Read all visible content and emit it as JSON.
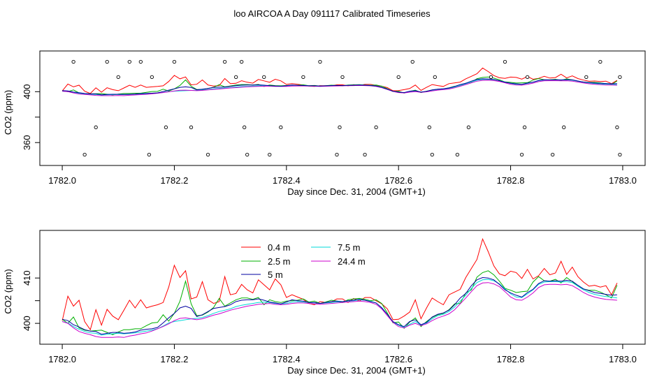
{
  "title": "loo AIRCOA A  Day 091117  Calibrated Timeseries",
  "colors": {
    "0.4 m": "#ff0000",
    "2.5 m": "#00b000",
    "5 m": "#0000a0",
    "7.5 m": "#00d8d8",
    "24.4 m": "#cc00cc"
  },
  "chart_data": [
    {
      "type": "line+scatter",
      "ylabel": "CO2 (ppm)",
      "xlabel": "Day since Dec. 31, 2004 (GMT+1)",
      "xlim": [
        1781.96,
        1783.04
      ],
      "ylim": [
        342,
        432
      ],
      "xticks": [
        1782.0,
        1782.2,
        1782.4,
        1782.6,
        1782.8,
        1783.0
      ],
      "xtick_labels": [
        "1782.0",
        "1782.2",
        "1782.4",
        "1782.6",
        "1782.8",
        "1783.0"
      ],
      "yticks": [
        360,
        380,
        400
      ],
      "ytick_labels": [
        "360",
        "",
        "400"
      ],
      "x": [
        1782.0,
        1782.01,
        1782.02,
        1782.03,
        1782.04,
        1782.05,
        1782.06,
        1782.07,
        1782.08,
        1782.09,
        1782.1,
        1782.11,
        1782.12,
        1782.13,
        1782.14,
        1782.15,
        1782.16,
        1782.17,
        1782.18,
        1782.19,
        1782.2,
        1782.21,
        1782.22,
        1782.23,
        1782.24,
        1782.25,
        1782.26,
        1782.27,
        1782.28,
        1782.29,
        1782.3,
        1782.31,
        1782.32,
        1782.33,
        1782.34,
        1782.35,
        1782.36,
        1782.37,
        1782.38,
        1782.39,
        1782.4,
        1782.41,
        1782.42,
        1782.43,
        1782.44,
        1782.45,
        1782.46,
        1782.47,
        1782.48,
        1782.49,
        1782.5,
        1782.51,
        1782.52,
        1782.53,
        1782.54,
        1782.55,
        1782.56,
        1782.57,
        1782.58,
        1782.59,
        1782.6,
        1782.61,
        1782.62,
        1782.63,
        1782.64,
        1782.65,
        1782.66,
        1782.67,
        1782.68,
        1782.69,
        1782.7,
        1782.71,
        1782.72,
        1782.73,
        1782.74,
        1782.75,
        1782.76,
        1782.77,
        1782.78,
        1782.79,
        1782.8,
        1782.81,
        1782.82,
        1782.83,
        1782.84,
        1782.85,
        1782.86,
        1782.87,
        1782.88,
        1782.89,
        1782.9,
        1782.91,
        1782.92,
        1782.93,
        1782.94,
        1782.95,
        1782.96,
        1782.97,
        1782.98,
        1782.99
      ],
      "series": [
        {
          "name": "0.4 m",
          "values": [
            400.6,
            406.0,
            403.8,
            405.1,
            400.4,
            398.6,
            403.0,
            399.6,
            403.1,
            401.6,
            400.8,
            402.9,
            405.1,
            403.4,
            405.2,
            403.4,
            403.8,
            404.1,
            404.6,
            408.0,
            412.8,
            410.1,
            411.6,
            405.4,
            405.8,
            409.2,
            405.2,
            404.4,
            404.8,
            410.3,
            406.3,
            406.6,
            408.6,
            407.4,
            406.7,
            409.6,
            408.5,
            407.4,
            409.8,
            408.5,
            405.7,
            406.3,
            405.8,
            405.3,
            404.4,
            404.1,
            404.8,
            404.6,
            404.7,
            405.4,
            405.4,
            404.6,
            405.5,
            404.9,
            405.7,
            405.7,
            405.0,
            404.3,
            403.2,
            400.8,
            400.9,
            401.6,
            402.5,
            405.2,
            401.0,
            403.4,
            405.6,
            404.8,
            404.1,
            406.3,
            406.9,
            407.5,
            410.1,
            412.1,
            414.1,
            418.6,
            415.8,
            412.7,
            410.9,
            410.5,
            411.5,
            411.2,
            409.9,
            411.9,
            409.8,
            410.5,
            412.1,
            410.7,
            411.1,
            413.7,
            410.8,
            412.4,
            410.3,
            409.1,
            408.2,
            408.4,
            408.0,
            408.3,
            406.3,
            408.9
          ]
        },
        {
          "name": "2.5 m",
          "values": [
            400.9,
            400.0,
            401.4,
            399.0,
            398.5,
            398.3,
            398.4,
            398.5,
            398.0,
            397.5,
            398.1,
            398.6,
            398.6,
            398.8,
            398.8,
            399.5,
            400.1,
            400.2,
            401.9,
            400.5,
            402.2,
            404.9,
            409.3,
            404.3,
            401.7,
            401.8,
            402.5,
            403.5,
            405.5,
            403.8,
            404.5,
            405.2,
            405.6,
            405.6,
            405.3,
            405.7,
            404.1,
            405.2,
            404.8,
            404.6,
            404.9,
            405.0,
            405.1,
            405.4,
            404.7,
            404.9,
            404.4,
            404.7,
            405.1,
            404.9,
            404.6,
            405.2,
            405.4,
            405.5,
            405.3,
            405.0,
            405.2,
            404.4,
            402.3,
            400.1,
            400.3,
            398.9,
            400.3,
            401.2,
            399.3,
            400.4,
            401.3,
            401.9,
            402.2,
            403.0,
            404.3,
            404.4,
            406.7,
            407.4,
            410.2,
            411.2,
            411.6,
            410.7,
            409.3,
            407.7,
            407.3,
            406.8,
            407.0,
            407.1,
            409.1,
            410.3,
            409.4,
            409.3,
            409.7,
            408.9,
            410.1,
            409.2,
            408.2,
            407.6,
            407.3,
            407.3,
            406.9,
            406.3,
            405.6,
            408.4
          ]
        },
        {
          "name": "5 m",
          "values": [
            400.9,
            400.6,
            399.7,
            399.2,
            398.6,
            398.3,
            398.2,
            397.6,
            397.8,
            398.0,
            398.0,
            397.8,
            397.9,
            398.1,
            398.5,
            398.7,
            398.8,
            399.1,
            400.1,
            401.2,
            402.2,
            403.4,
            403.8,
            403.3,
            401.5,
            401.9,
            402.6,
            403.3,
            403.5,
            403.7,
            404.1,
            404.8,
            405.1,
            405.2,
            405.2,
            405.4,
            405.1,
            404.7,
            404.5,
            404.3,
            404.7,
            405.2,
            405.0,
            404.9,
            404.6,
            404.6,
            404.4,
            404.6,
            404.8,
            404.9,
            404.8,
            405.0,
            405.1,
            405.3,
            405.1,
            404.8,
            404.5,
            403.4,
            402.0,
            400.4,
            399.7,
            399.3,
            400.4,
            400.8,
            399.7,
            400.2,
            401.4,
            402.0,
            402.3,
            402.9,
            404.1,
            405.6,
            406.6,
            408.3,
            409.6,
            410.1,
            410.0,
            409.6,
            408.6,
            407.4,
            406.7,
            406.2,
            405.8,
            406.8,
            407.5,
            408.8,
            409.4,
            409.3,
            409.4,
            409.3,
            409.5,
            409.3,
            408.4,
            407.6,
            407.2,
            406.8,
            406.6,
            406.4,
            406.2,
            406.3
          ]
        },
        {
          "name": "7.5 m",
          "values": [
            400.4,
            400.1,
            399.3,
            398.7,
            398.2,
            397.9,
            397.8,
            397.4,
            397.6,
            397.7,
            397.8,
            397.7,
            397.8,
            397.9,
            398.1,
            398.3,
            398.5,
            398.8,
            399.4,
            400.1,
            400.4,
            400.6,
            400.8,
            401.0,
            401.1,
            401.3,
            401.7,
            402.2,
            402.6,
            402.9,
            403.2,
            403.7,
            404.0,
            404.2,
            404.4,
            404.6,
            404.7,
            404.6,
            404.4,
            404.3,
            404.4,
            404.7,
            404.8,
            404.7,
            404.6,
            404.5,
            404.4,
            404.5,
            404.6,
            404.7,
            404.8,
            404.9,
            405.0,
            405.2,
            405.1,
            404.9,
            404.5,
            403.5,
            402.0,
            400.3,
            399.6,
            399.1,
            399.8,
            400.4,
            399.6,
            400.1,
            401.0,
            401.7,
            402.0,
            402.6,
            403.6,
            404.9,
            406.2,
            407.7,
            409.0,
            409.6,
            409.7,
            409.4,
            408.7,
            407.6,
            406.5,
            405.8,
            405.7,
            406.5,
            407.4,
            408.6,
            409.1,
            409.2,
            409.2,
            409.1,
            409.2,
            409.0,
            408.2,
            407.4,
            406.8,
            406.4,
            406.1,
            405.9,
            405.8,
            405.6
          ]
        },
        {
          "name": "24.4 m",
          "values": [
            400.4,
            400.0,
            399.0,
            398.2,
            397.8,
            397.5,
            397.1,
            396.9,
            396.9,
            396.9,
            397.0,
            396.9,
            397.2,
            397.4,
            397.7,
            397.9,
            398.3,
            398.8,
            399.3,
            399.9,
            400.6,
            401.1,
            401.2,
            401.0,
            400.8,
            401.0,
            401.4,
            401.8,
            402.1,
            402.5,
            402.9,
            403.2,
            403.5,
            403.8,
            404.0,
            404.2,
            404.3,
            404.4,
            404.2,
            404.1,
            404.2,
            404.4,
            404.5,
            404.5,
            404.4,
            404.3,
            404.2,
            404.3,
            404.4,
            404.5,
            404.6,
            404.7,
            404.8,
            404.9,
            404.8,
            404.6,
            404.2,
            403.2,
            401.7,
            400.2,
            399.3,
            399.0,
            399.6,
            400.0,
            399.5,
            399.9,
            400.6,
            401.2,
            401.6,
            402.1,
            403.0,
            404.3,
            405.6,
            407.0,
            408.3,
            408.9,
            409.0,
            408.7,
            408.1,
            407.0,
            405.8,
            405.2,
            405.1,
            405.8,
            406.7,
            407.9,
            408.5,
            408.6,
            408.6,
            408.5,
            408.6,
            408.3,
            407.6,
            406.8,
            406.2,
            405.8,
            405.5,
            405.3,
            405.2,
            405.1
          ]
        }
      ],
      "points": {
        "x": [
          1782.02,
          1782.04,
          1782.06,
          1782.08,
          1782.1,
          1782.12,
          1782.14,
          1782.155,
          1782.16,
          1782.185,
          1782.2,
          1782.23,
          1782.26,
          1782.29,
          1782.31,
          1782.32,
          1782.325,
          1782.33,
          1782.36,
          1782.37,
          1782.39,
          1782.43,
          1782.46,
          1782.49,
          1782.495,
          1782.5,
          1782.54,
          1782.56,
          1782.6,
          1782.625,
          1782.655,
          1782.66,
          1782.665,
          1782.705,
          1782.725,
          1782.765,
          1782.79,
          1782.82,
          1782.825,
          1782.83,
          1782.875,
          1782.895,
          1782.935,
          1782.96,
          1782.99,
          1782.995,
          1782.995
        ],
        "y": [
          423.5,
          350.5,
          372.0,
          423.5,
          411.5,
          423.5,
          423.5,
          350.5,
          411.5,
          372.0,
          423.5,
          372.0,
          350.5,
          423.5,
          411.5,
          423.5,
          372.0,
          350.5,
          411.5,
          350.5,
          372.0,
          411.5,
          423.5,
          350.5,
          372.0,
          411.5,
          350.5,
          372.0,
          411.5,
          423.5,
          372.0,
          350.5,
          411.5,
          350.5,
          372.0,
          411.5,
          423.5,
          350.5,
          372.0,
          411.5,
          350.5,
          372.0,
          411.5,
          423.5,
          372.0,
          350.5,
          411.5
        ]
      }
    },
    {
      "type": "line",
      "ylabel": "CO2 (ppm)",
      "xlabel": "Day since Dec. 31, 2004 (GMT+1)",
      "xlim": [
        1781.96,
        1783.04
      ],
      "ylim": [
        395.4,
        420.5
      ],
      "xticks": [
        1782.0,
        1782.2,
        1782.4,
        1782.6,
        1782.8,
        1783.0
      ],
      "xtick_labels": [
        "1782.0",
        "1782.2",
        "1782.4",
        "1782.6",
        "1782.8",
        "1783.0"
      ],
      "yticks": [
        400,
        405,
        410
      ],
      "ytick_labels": [
        "400",
        "",
        "410"
      ],
      "legend": {
        "placement": "top-center",
        "entries": [
          "0.4 m",
          "2.5 m",
          "5 m",
          "7.5 m",
          "24.4 m"
        ]
      }
    }
  ]
}
